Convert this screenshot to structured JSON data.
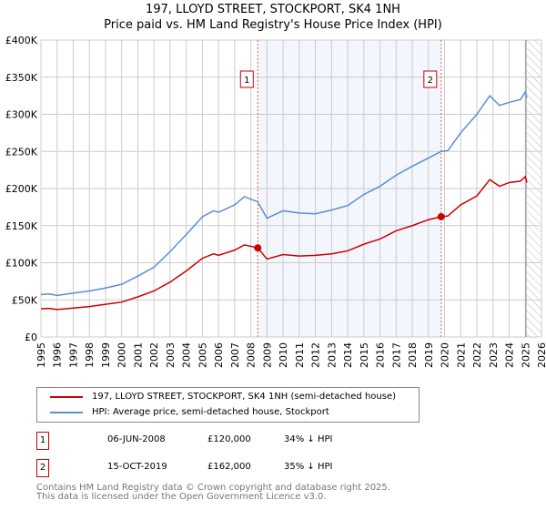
{
  "chart_data": {
    "type": "line",
    "title": "197, LLOYD STREET, STOCKPORT, SK4 1NH",
    "subtitle": "Price paid vs. HM Land Registry's House Price Index (HPI)",
    "xlim": [
      1995,
      2026
    ],
    "ylim": [
      0,
      400000
    ],
    "x_ticks": [
      "1995",
      "1996",
      "1997",
      "1998",
      "1999",
      "2000",
      "2001",
      "2002",
      "2003",
      "2004",
      "2005",
      "2006",
      "2007",
      "2008",
      "2009",
      "2010",
      "2011",
      "2012",
      "2013",
      "2014",
      "2015",
      "2016",
      "2017",
      "2018",
      "2019",
      "2020",
      "2021",
      "2022",
      "2023",
      "2024",
      "2025",
      "2026"
    ],
    "y_ticks": [
      {
        "v": 0,
        "label": "£0"
      },
      {
        "v": 50000,
        "label": "£50K"
      },
      {
        "v": 100000,
        "label": "£100K"
      },
      {
        "v": 150000,
        "label": "£150K"
      },
      {
        "v": 200000,
        "label": "£200K"
      },
      {
        "v": 250000,
        "label": "£250K"
      },
      {
        "v": 300000,
        "label": "£300K"
      },
      {
        "v": 350000,
        "label": "£350K"
      },
      {
        "v": 400000,
        "label": "£400K"
      }
    ],
    "grid": true,
    "forecast_hatch_from": 2025.1,
    "series": [
      {
        "name": "197, LLOYD STREET, STOCKPORT, SK4 1NH (semi-detached house)",
        "color": "#cc0000",
        "x": [
          1995,
          1995.5,
          1996,
          1997,
          1998,
          1999,
          2000,
          2001,
          2002,
          2003,
          2004,
          2005,
          2005.7,
          2006,
          2007,
          2007.6,
          2008.43,
          2009,
          2010,
          2011,
          2012,
          2013,
          2014,
          2015,
          2016,
          2017,
          2018,
          2019,
          2019.79,
          2020.2,
          2021,
          2022,
          2022.8,
          2023.4,
          2024,
          2024.7,
          2025,
          2025.1
        ],
        "y": [
          38000,
          38500,
          37000,
          39000,
          41000,
          44000,
          47000,
          54000,
          62000,
          74000,
          89000,
          106000,
          112000,
          110000,
          117000,
          124000,
          120000,
          105000,
          111000,
          109000,
          110000,
          112000,
          116000,
          125000,
          132000,
          143000,
          150000,
          158000,
          162000,
          163000,
          178000,
          190000,
          212000,
          203000,
          208000,
          210000,
          216000,
          208000
        ]
      },
      {
        "name": "HPI: Average price, semi-detached house, Stockport",
        "color": "#5b8fd4",
        "x": [
          1995,
          1995.5,
          1996,
          1997,
          1998,
          1999,
          2000,
          2001,
          2002,
          2003,
          2004,
          2005,
          2005.7,
          2006,
          2007,
          2007.6,
          2008.43,
          2009,
          2010,
          2011,
          2012,
          2013,
          2014,
          2015,
          2016,
          2017,
          2018,
          2019,
          2019.79,
          2020.2,
          2021,
          2022,
          2022.8,
          2023.4,
          2024,
          2024.7,
          2025,
          2025.1
        ],
        "y": [
          57000,
          58000,
          56000,
          59000,
          62000,
          66000,
          71000,
          82000,
          94000,
          115000,
          138000,
          162000,
          170000,
          168000,
          178000,
          189000,
          182000,
          160000,
          170000,
          167000,
          166000,
          171000,
          177000,
          192000,
          203000,
          218000,
          230000,
          241000,
          250000,
          251000,
          275000,
          300000,
          325000,
          312000,
          316000,
          320000,
          330000,
          322000
        ]
      }
    ],
    "sales": [
      {
        "num": "1",
        "x": 2008.43,
        "price": 120000,
        "date": "06-JUN-2008",
        "price_label": "£120,000",
        "hpi": "34% ↓ HPI"
      },
      {
        "num": "2",
        "x": 2019.79,
        "price": 162000,
        "date": "15-OCT-2019",
        "price_label": "£162,000",
        "hpi": "35% ↓ HPI"
      }
    ]
  },
  "legend": {
    "property": "197, LLOYD STREET, STOCKPORT, SK4 1NH (semi-detached house)",
    "hpi": "HPI: Average price, semi-detached house, Stockport"
  },
  "footer": {
    "line1": "Contains HM Land Registry data © Crown copyright and database right 2025.",
    "line2": "This data is licensed under the Open Government Licence v3.0."
  }
}
